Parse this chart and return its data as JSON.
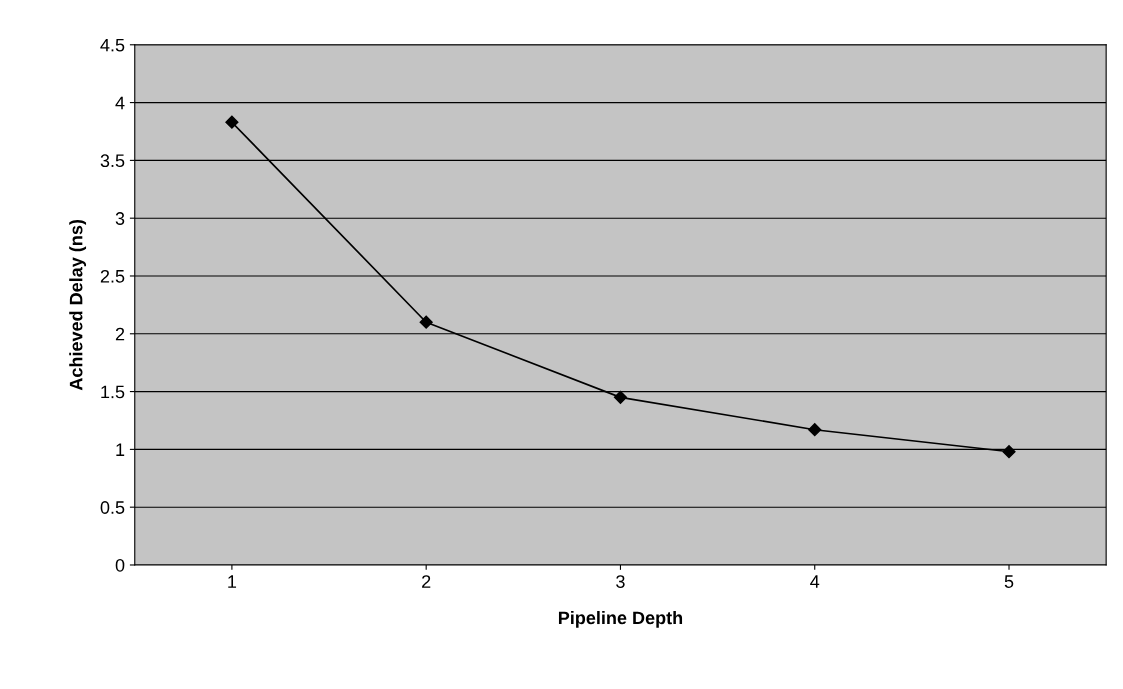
{
  "chart_data": {
    "type": "line",
    "xlabel": "Pipeline Depth",
    "ylabel": "Achieved Delay (ns)",
    "categories": [
      "1",
      "2",
      "3",
      "4",
      "5"
    ],
    "series": [
      {
        "color": "#000000",
        "values": [
          3.83,
          2.1,
          1.45,
          1.17,
          0.98
        ]
      }
    ],
    "ylim": [
      0,
      4.5
    ],
    "yticks": [
      0,
      0.5,
      1,
      1.5,
      2,
      2.5,
      3,
      3.5,
      4,
      4.5
    ],
    "grid": "y",
    "marker": "diamond",
    "line_style": "solid",
    "legend": false
  }
}
